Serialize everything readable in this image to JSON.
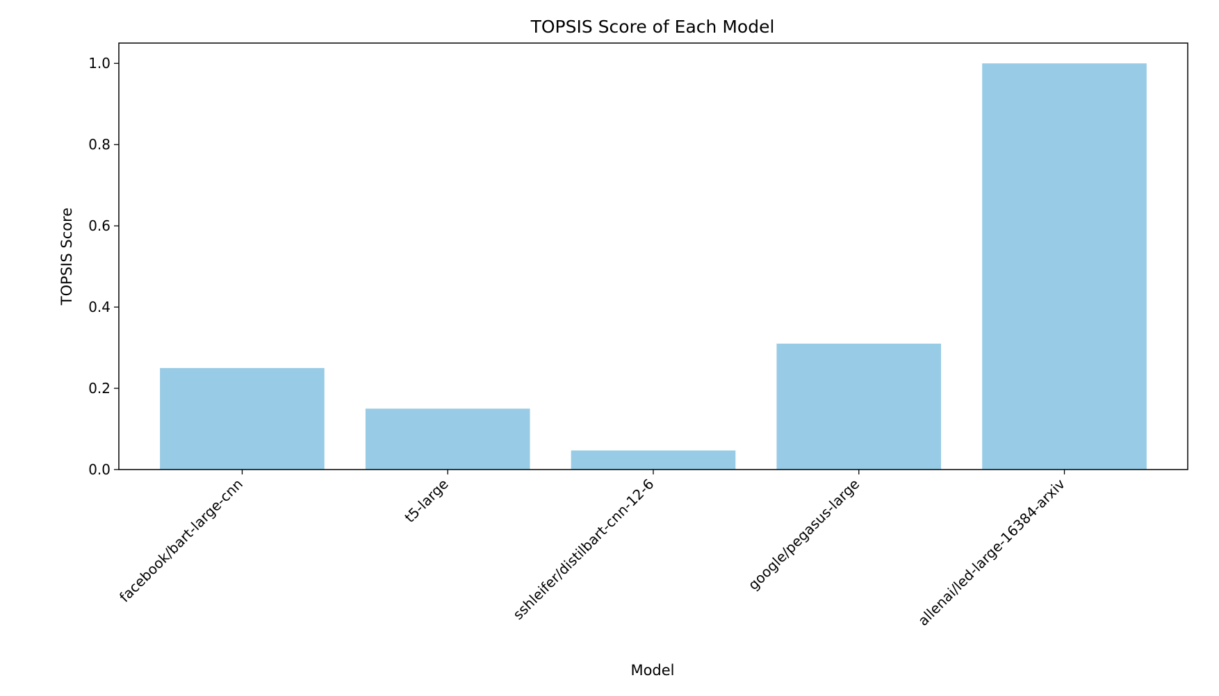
{
  "chart_data": {
    "type": "bar",
    "title": "TOPSIS Score of Each Model",
    "xlabel": "Model",
    "ylabel": "TOPSIS Score",
    "categories": [
      "facebook/bart-large-cnn",
      "t5-large",
      "sshleifer/distilbart-cnn-12-6",
      "google/pegasus-large",
      "allenai/led-large-16384-arxiv"
    ],
    "values": [
      0.25,
      0.15,
      0.047,
      0.31,
      1.0
    ],
    "ylim": [
      0,
      1.05
    ],
    "yticks": [
      "0.0",
      "0.2",
      "0.4",
      "0.6",
      "0.8",
      "1.0"
    ],
    "bar_color": "#98cbe6",
    "grid": false,
    "legend": "none"
  }
}
